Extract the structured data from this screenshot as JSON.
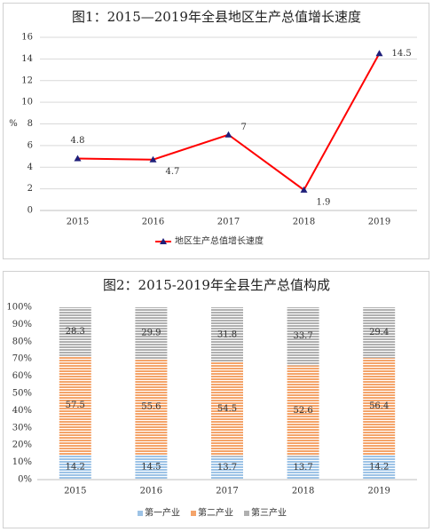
{
  "chart_data": [
    {
      "type": "line",
      "title": "图1：2015—2019年全县地区生产总值增长速度",
      "y_label": "%",
      "categories": [
        "2015",
        "2016",
        "2017",
        "2018",
        "2019"
      ],
      "series": [
        {
          "name": "地区生产总值增长速度",
          "color": "#ff0000",
          "marker_color": "#1f1f7a",
          "values": [
            4.8,
            4.7,
            7,
            1.9,
            14.5
          ]
        }
      ],
      "ylim": [
        0,
        16
      ],
      "yticks": [
        0,
        2,
        4,
        6,
        8,
        10,
        12,
        14,
        16
      ],
      "grid": true,
      "legend": "bottom"
    },
    {
      "type": "stacked_bar",
      "title": "图2：2015-2019年全县生产总值构成",
      "categories": [
        "2015",
        "2016",
        "2017",
        "2018",
        "2019"
      ],
      "series": [
        {
          "name": "第一产业",
          "color": "#9dc3e6",
          "values": [
            14.2,
            14.5,
            13.7,
            13.7,
            14.2
          ]
        },
        {
          "name": "第二产业",
          "color": "#f4a46a",
          "values": [
            57.5,
            55.6,
            54.5,
            52.6,
            56.4
          ]
        },
        {
          "name": "第三产业",
          "color": "#b0b0b0",
          "values": [
            28.3,
            29.9,
            31.8,
            33.7,
            29.4
          ]
        }
      ],
      "ylim": [
        0,
        100
      ],
      "yticks": [
        {
          "value": 0,
          "label": "0%"
        },
        {
          "value": 10,
          "label": "10%"
        },
        {
          "value": 20,
          "label": "20%"
        },
        {
          "value": 30,
          "label": "30%"
        },
        {
          "value": 40,
          "label": "40%"
        },
        {
          "value": 50,
          "label": "50%"
        },
        {
          "value": 60,
          "label": "60%"
        },
        {
          "value": 70,
          "label": "70%"
        },
        {
          "value": 80,
          "label": "80%"
        },
        {
          "value": 90,
          "label": "90%"
        },
        {
          "value": 100,
          "label": "100%"
        }
      ],
      "grid": false,
      "legend": "bottom"
    }
  ]
}
